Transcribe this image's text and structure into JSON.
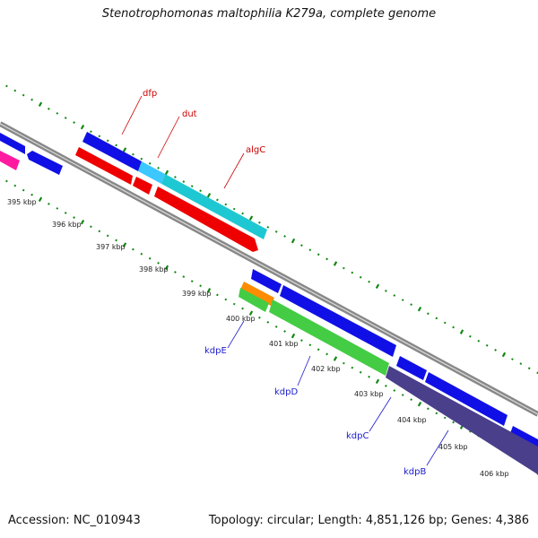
{
  "title": "Stenotrophomonas maltophilia K279a, complete genome",
  "footer": {
    "accession": "Accession: NC_010943",
    "topology": "Topology: circular; Length: 4,851,126 bp; Genes: 4,386"
  },
  "colors": {
    "backbone": "#888888",
    "tick": "#118811",
    "blue": "#1010e6",
    "red": "#ee0000",
    "cyan": "#1ec8d2",
    "light_blue": "#3cc8ff",
    "green": "#44cc44",
    "orange": "#ff8c00",
    "slate": "#4a3f8a",
    "magenta": "#ff1aa0",
    "label_red": "#cc0000",
    "label_blue": "#1a1acc"
  },
  "scale_labels": [
    "395 kbp",
    "396 kbp",
    "397 kbp",
    "398 kbp",
    "399 kbp",
    "400 kbp",
    "401 kbp",
    "402 kbp",
    "403 kbp",
    "404 kbp",
    "405 kbp",
    "406 kbp"
  ],
  "gene_labels": {
    "dfp": "dfp",
    "dut": "dut",
    "algC": "algC",
    "kdpE": "kdpE",
    "kdpD": "kdpD",
    "kdpC": "kdpC",
    "kdpB": "kdpB"
  }
}
